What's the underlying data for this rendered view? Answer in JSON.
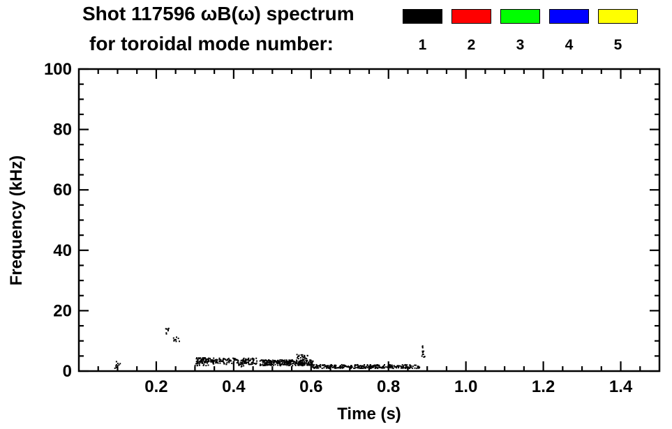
{
  "legend": {
    "modes": [
      {
        "label": "1",
        "color": "#000000"
      },
      {
        "label": "2",
        "color": "#ff0000"
      },
      {
        "label": "3",
        "color": "#00ff00"
      },
      {
        "label": "4",
        "color": "#0000ff"
      },
      {
        "label": "5",
        "color": "#ffff00"
      }
    ]
  },
  "chart_data": {
    "type": "scatter",
    "title": "Shot 117596 ωB(ω) spectrum",
    "subtitle": "for toroidal mode number:",
    "xlabel": "Time (s)",
    "ylabel": "Frequency (kHz)",
    "xlim": [
      0,
      1.5
    ],
    "ylim": [
      0,
      100
    ],
    "x_major_ticks": [
      0.2,
      0.4,
      0.6,
      0.8,
      1.0,
      1.2,
      1.4
    ],
    "x_tick_labels": [
      "0.2",
      "0.4",
      "0.6",
      "0.8",
      "1.0",
      "1.2",
      "1.4"
    ],
    "x_minor_step": 0.05,
    "y_major_ticks": [
      0,
      20,
      40,
      60,
      80,
      100
    ],
    "y_tick_labels": [
      "0",
      "20",
      "40",
      "60",
      "80",
      "100"
    ],
    "y_minor_step": 5,
    "grid": false,
    "legend_position": "top",
    "series": [
      {
        "name": "n1",
        "mode": 1,
        "color": "#000000",
        "clusters": [
          {
            "t0": 0.093,
            "t1": 0.107,
            "f0": 0.8,
            "f1": 3.2,
            "n": 10
          },
          {
            "t0": 0.224,
            "t1": 0.236,
            "f0": 12.0,
            "f1": 14.2,
            "n": 8
          },
          {
            "t0": 0.243,
            "t1": 0.263,
            "f0": 9.8,
            "f1": 11.3,
            "n": 9
          },
          {
            "t0": 0.3,
            "t1": 0.335,
            "f0": 1.8,
            "f1": 4.4,
            "n": 70
          },
          {
            "t0": 0.335,
            "t1": 0.46,
            "f0": 2.2,
            "f1": 4.3,
            "n": 150
          },
          {
            "t0": 0.413,
            "t1": 0.427,
            "f0": 1.4,
            "f1": 2.6,
            "n": 12
          },
          {
            "t0": 0.468,
            "t1": 0.605,
            "f0": 1.8,
            "f1": 3.7,
            "n": 280
          },
          {
            "t0": 0.558,
            "t1": 0.592,
            "f0": 3.8,
            "f1": 5.5,
            "n": 22
          },
          {
            "t0": 0.604,
            "t1": 0.882,
            "f0": 0.9,
            "f1": 2.1,
            "n": 320
          },
          {
            "t0": 0.886,
            "t1": 0.894,
            "f0": 4.6,
            "f1": 8.3,
            "n": 14
          }
        ]
      },
      {
        "name": "n2",
        "mode": 2,
        "color": "#ff0000",
        "clusters": []
      },
      {
        "name": "n3",
        "mode": 3,
        "color": "#00ff00",
        "clusters": []
      },
      {
        "name": "n4",
        "mode": 4,
        "color": "#0000ff",
        "clusters": []
      },
      {
        "name": "n5",
        "mode": 5,
        "color": "#ffff00",
        "clusters": []
      }
    ]
  }
}
